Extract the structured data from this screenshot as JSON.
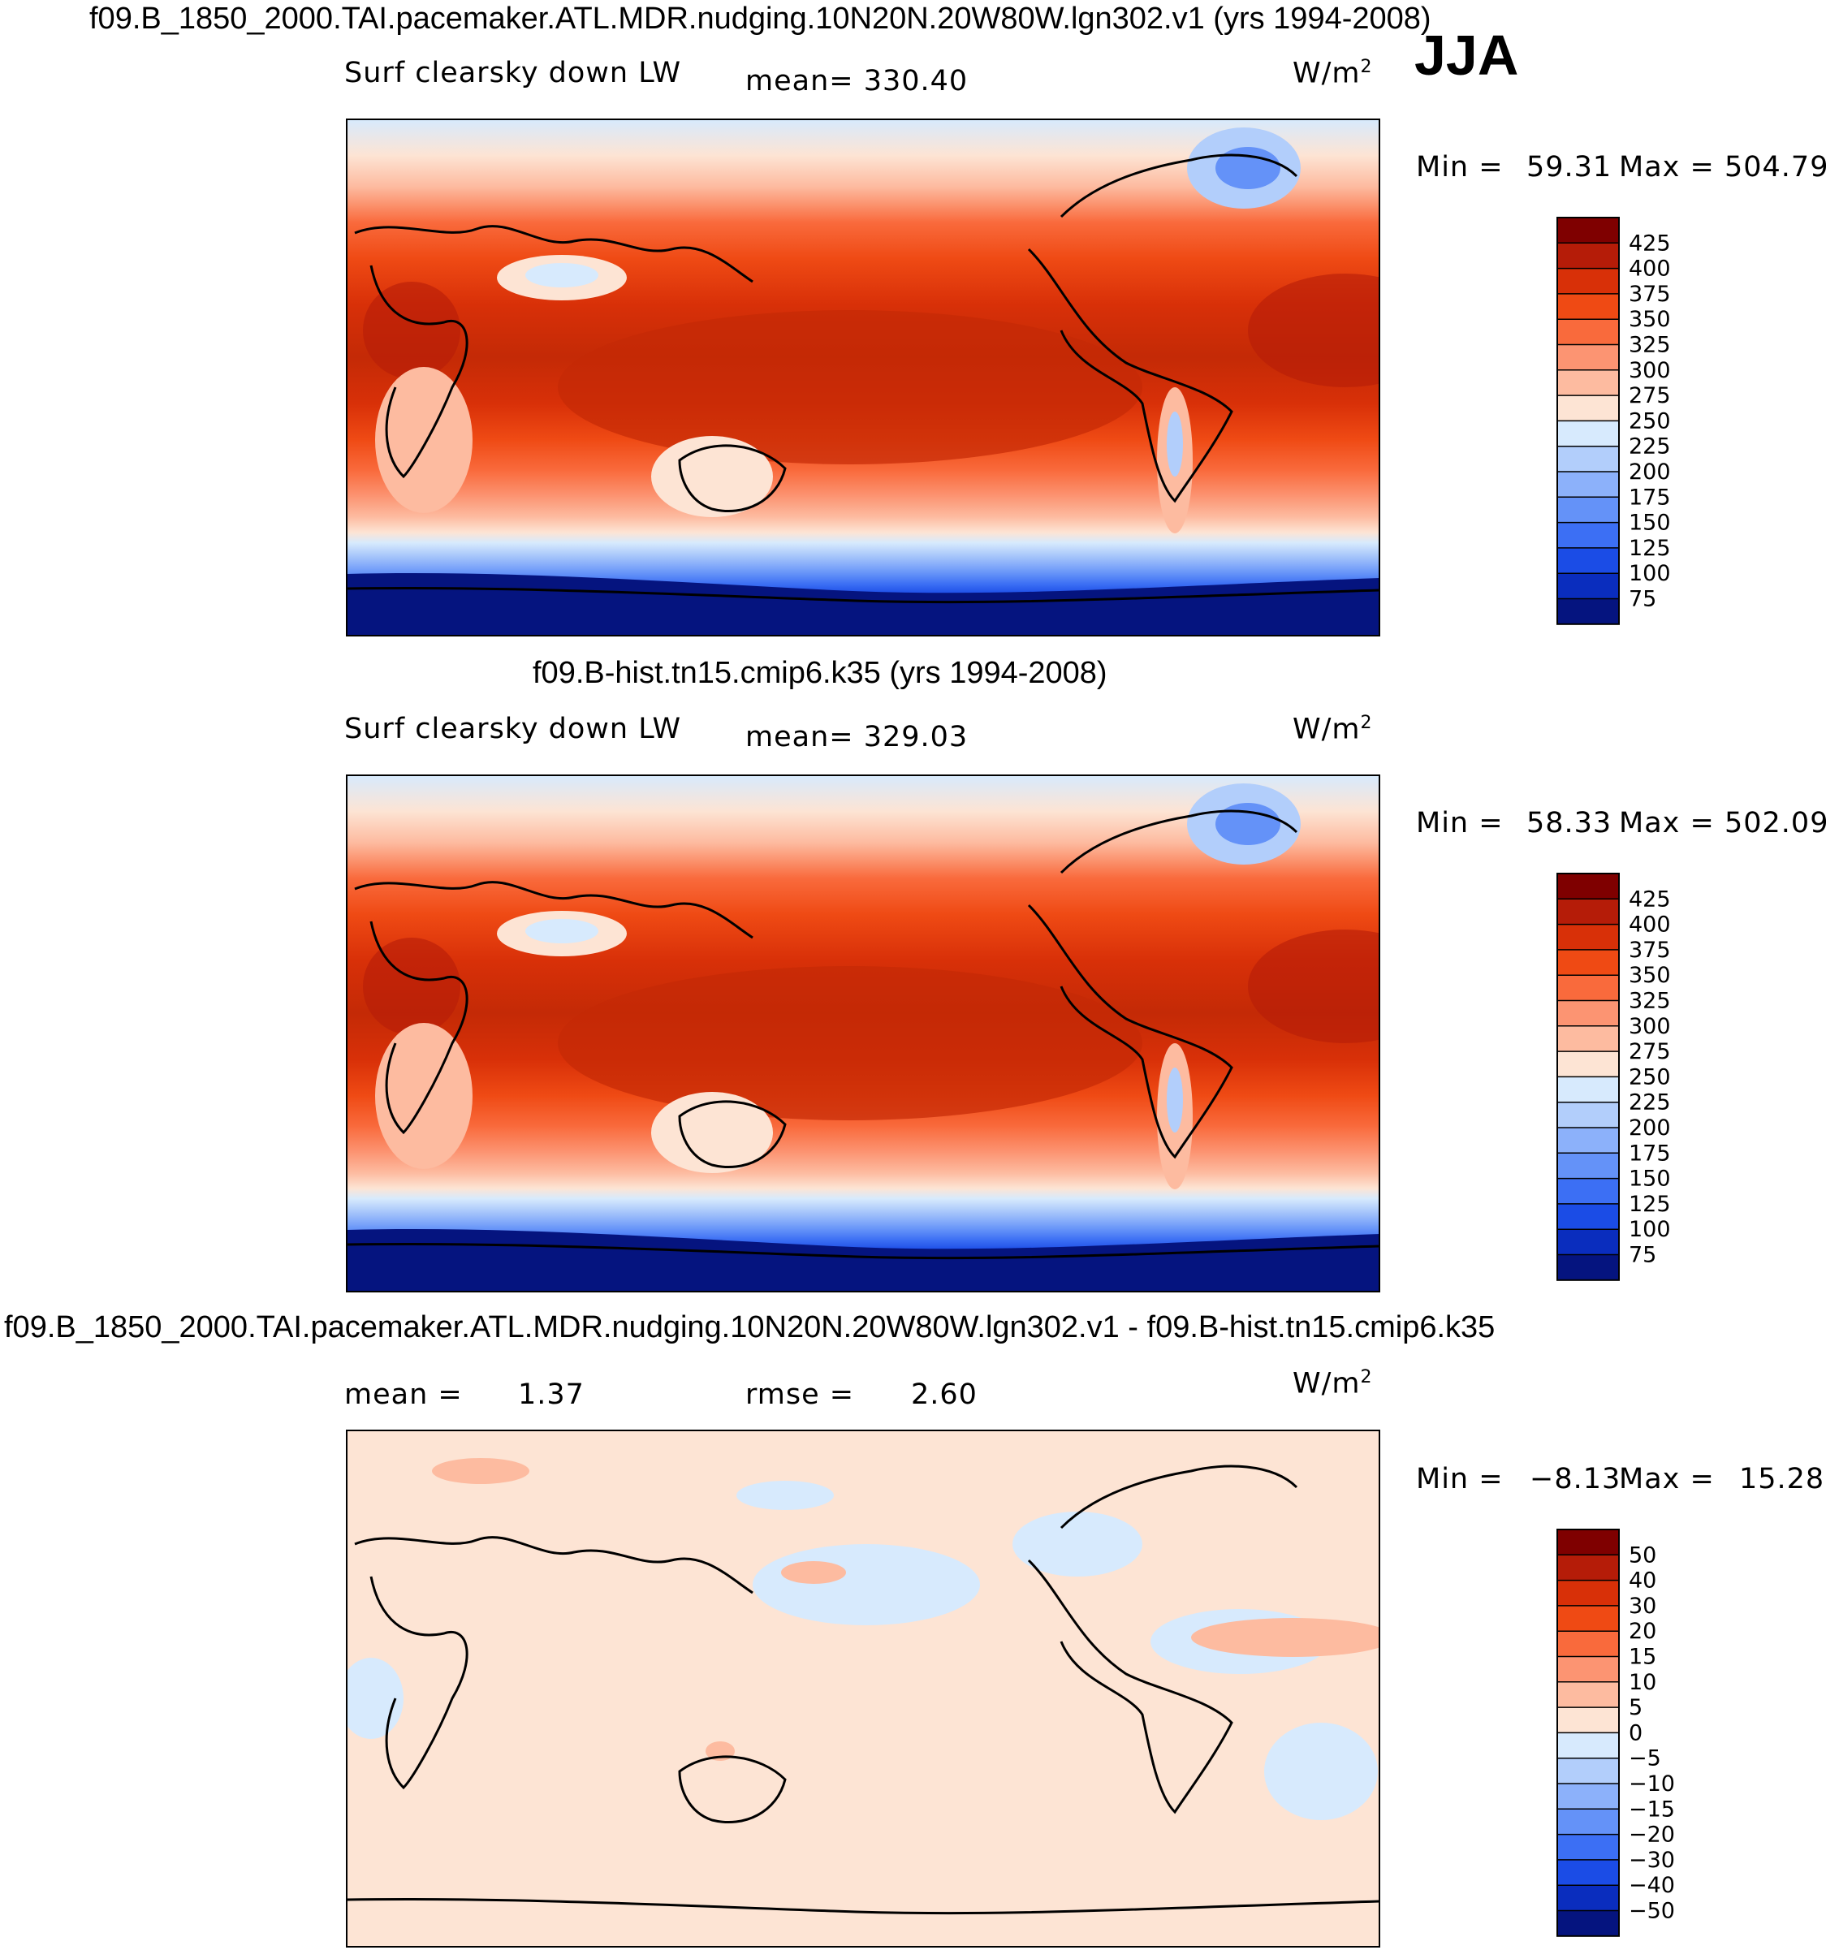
{
  "season": "JJA",
  "chart_data": [
    {
      "type": "heatmap",
      "title": "f09.B_1850_2000.TAI.pacemaker.ATL.MDR.nudging.10N20N.20W80W.lgn302.v1 (yrs 1994-2008)",
      "variable": "Surf clearsky down LW",
      "mean_label": "mean= 330.40",
      "units_label": "W/m",
      "units_exp": "2",
      "min_label": "Min =",
      "min_value": "59.31",
      "max_label": "Max =",
      "max_value": "504.79",
      "colorbar": {
        "levels": [
          "425",
          "400",
          "375",
          "350",
          "325",
          "300",
          "275",
          "250",
          "225",
          "200",
          "175",
          "150",
          "125",
          "100",
          "75"
        ],
        "colors": [
          "#7f0000",
          "#b51c08",
          "#d83008",
          "#ef4a14",
          "#f96a3c",
          "#fc9472",
          "#fdbba0",
          "#fde4d4",
          "#d7eafd",
          "#b2cefb",
          "#8cb1fa",
          "#6492f8",
          "#3c6ff4",
          "#1b4ce6",
          "#0a2dbe",
          "#05147f"
        ]
      }
    },
    {
      "type": "heatmap",
      "title": "f09.B-hist.tn15.cmip6.k35 (yrs 1994-2008)",
      "variable": "Surf clearsky down LW",
      "mean_label": "mean= 329.03",
      "units_label": "W/m",
      "units_exp": "2",
      "min_label": "Min =",
      "min_value": "58.33",
      "max_label": "Max =",
      "max_value": "502.09",
      "colorbar": {
        "levels": [
          "425",
          "400",
          "375",
          "350",
          "325",
          "300",
          "275",
          "250",
          "225",
          "200",
          "175",
          "150",
          "125",
          "100",
          "75"
        ],
        "colors": [
          "#7f0000",
          "#b51c08",
          "#d83008",
          "#ef4a14",
          "#f96a3c",
          "#fc9472",
          "#fdbba0",
          "#fde4d4",
          "#d7eafd",
          "#b2cefb",
          "#8cb1fa",
          "#6492f8",
          "#3c6ff4",
          "#1b4ce6",
          "#0a2dbe",
          "#05147f"
        ]
      }
    },
    {
      "type": "heatmap",
      "title": "f09.B_1850_2000.TAI.pacemaker.ATL.MDR.nudging.10N20N.20W80W.lgn302.v1 - f09.B-hist.tn15.cmip6.k35",
      "mean_label": "mean =",
      "mean_value": "1.37",
      "rmse_label": "rmse =",
      "rmse_value": "2.60",
      "units_label": "W/m",
      "units_exp": "2",
      "min_label": "Min =",
      "min_value": "−8.13",
      "max_label": "Max =",
      "max_value": "15.28",
      "colorbar": {
        "levels": [
          "50",
          "40",
          "30",
          "20",
          "15",
          "10",
          "5",
          "0",
          "−5",
          "−10",
          "−15",
          "−20",
          "−30",
          "−40",
          "−50"
        ],
        "colors": [
          "#7f0000",
          "#b51c08",
          "#d83008",
          "#ef4a14",
          "#f96a3c",
          "#fc9472",
          "#fdbba0",
          "#fde4d4",
          "#d7eafd",
          "#b2cefb",
          "#8cb1fa",
          "#6492f8",
          "#3c6ff4",
          "#1b4ce6",
          "#0a2dbe",
          "#05147f"
        ]
      }
    }
  ]
}
